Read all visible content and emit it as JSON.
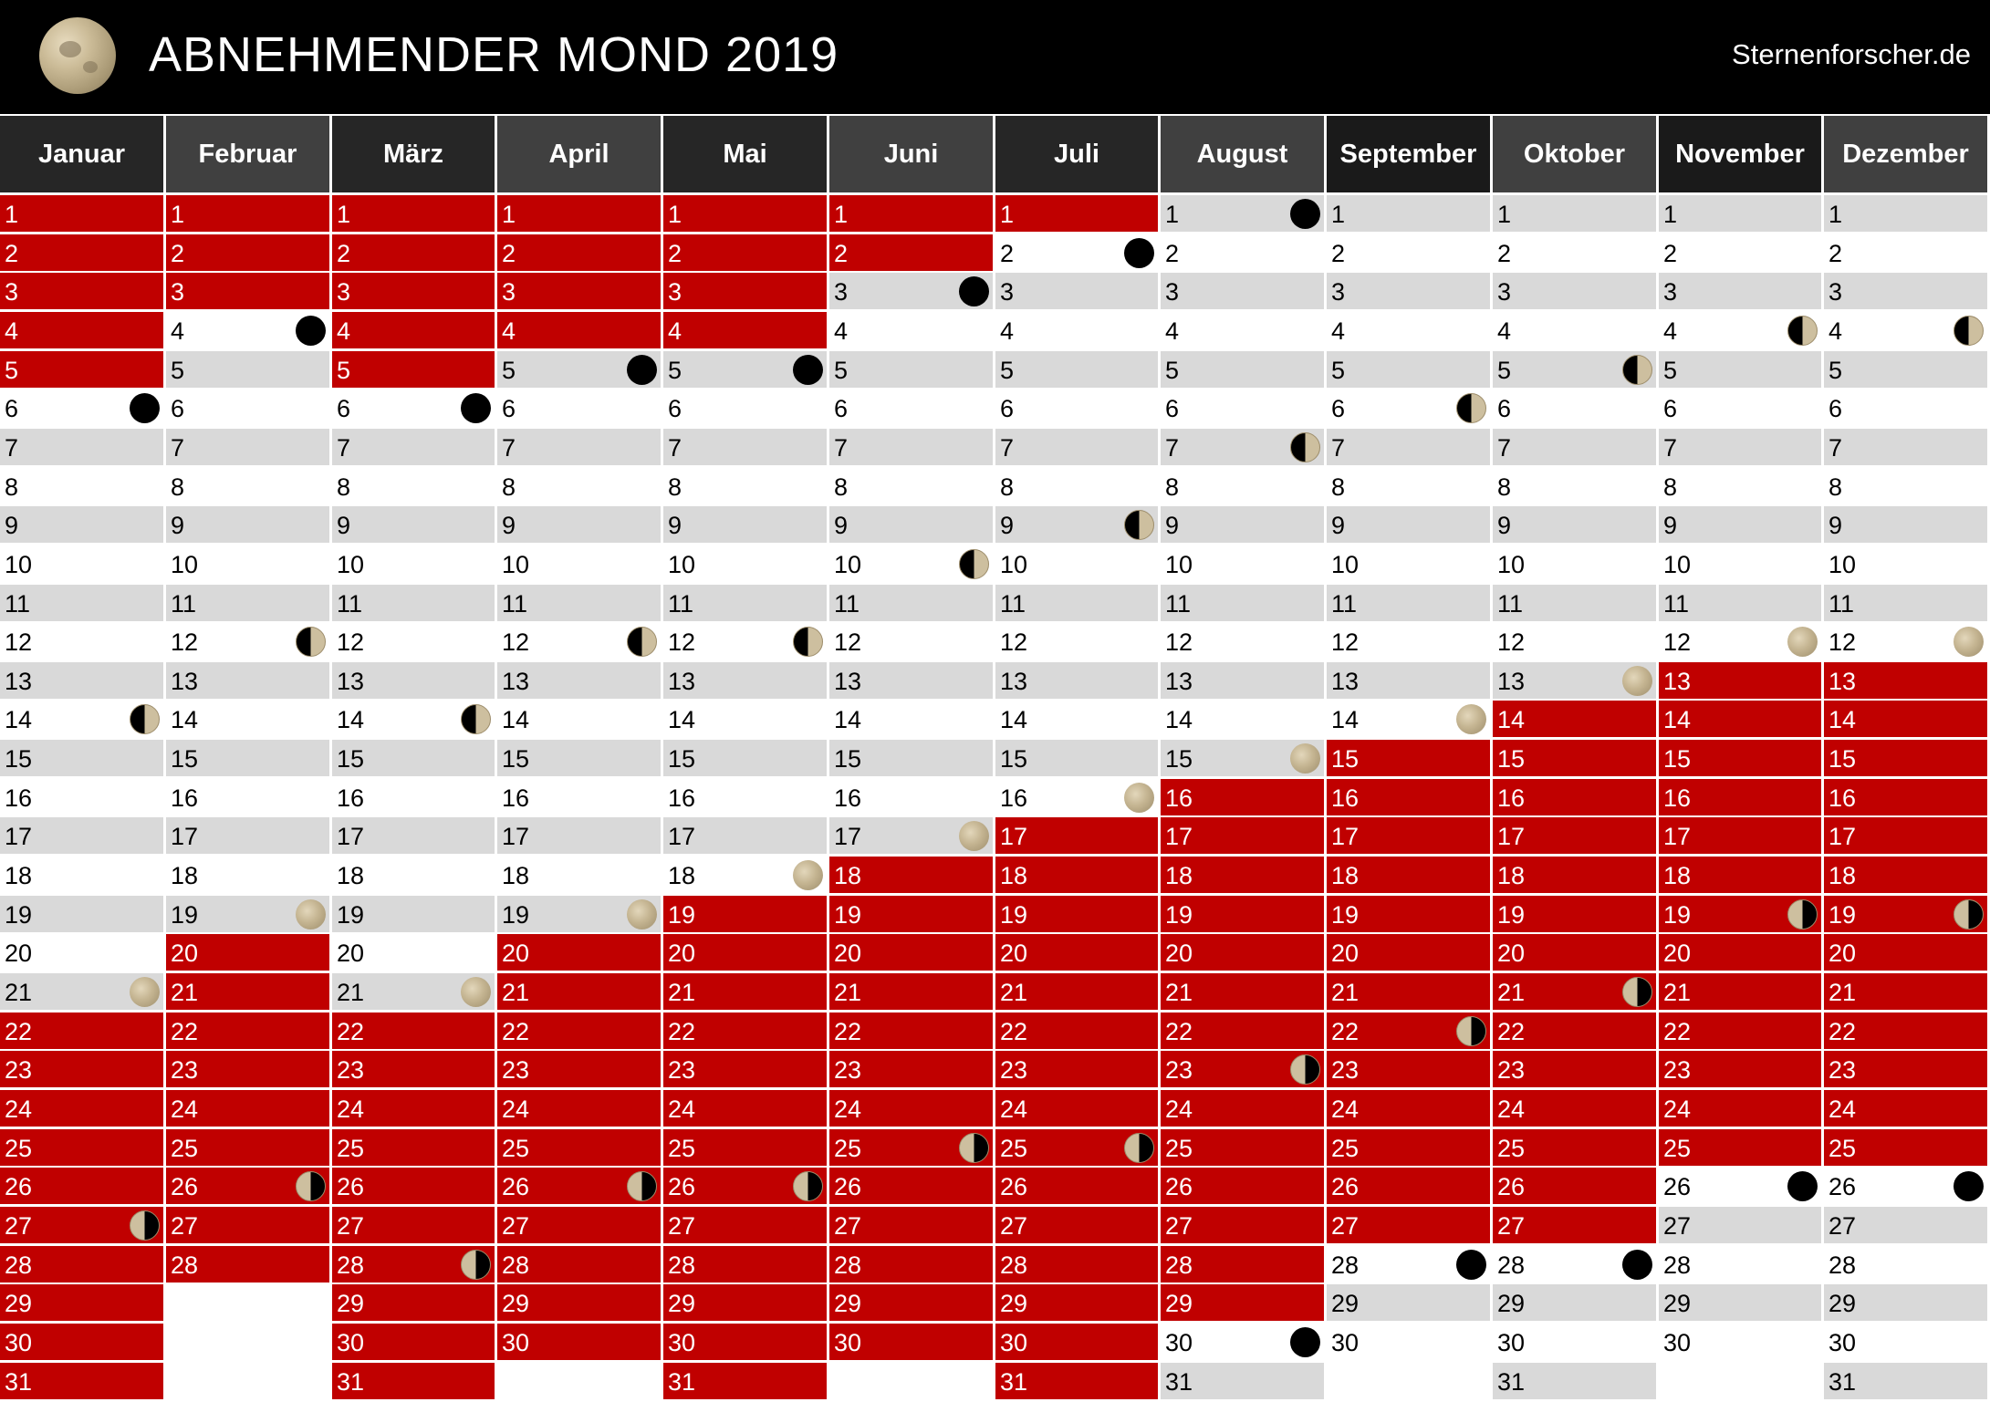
{
  "header": {
    "title": "ABNEHMENDER MOND 2019",
    "site": "Sternenforscher.de",
    "background_color": "#000000"
  },
  "colors": {
    "waning": "#c00000",
    "white_row": "#ffffff",
    "grey_row": "#d9d9d9",
    "header_dark": "#262626",
    "header_mid": "#404040"
  },
  "legend_phase_icons": [
    "new-moon-icon",
    "first-quarter-icon",
    "full-moon-icon",
    "last-quarter-icon"
  ],
  "months": [
    {
      "name": "Januar",
      "days": 31,
      "waning_days": [
        1,
        2,
        3,
        4,
        5,
        22,
        23,
        24,
        25,
        26,
        27,
        28,
        29,
        30,
        31
      ],
      "phases": {
        "6": "new",
        "14": "first",
        "21": "full",
        "27": "last"
      }
    },
    {
      "name": "Februar",
      "days": 28,
      "waning_days": [
        1,
        2,
        3,
        20,
        21,
        22,
        23,
        24,
        25,
        26,
        27,
        28
      ],
      "phases": {
        "4": "new",
        "12": "first",
        "19": "full",
        "26": "last"
      }
    },
    {
      "name": "März",
      "days": 31,
      "waning_days": [
        1,
        2,
        3,
        4,
        5,
        22,
        23,
        24,
        25,
        26,
        27,
        28,
        29,
        30,
        31
      ],
      "phases": {
        "6": "new",
        "14": "first",
        "21": "full",
        "28": "last"
      }
    },
    {
      "name": "April",
      "days": 30,
      "waning_days": [
        1,
        2,
        3,
        4,
        20,
        21,
        22,
        23,
        24,
        25,
        26,
        27,
        28,
        29,
        30
      ],
      "phases": {
        "5": "new",
        "12": "first",
        "19": "full",
        "26": "last"
      }
    },
    {
      "name": "Mai",
      "days": 31,
      "waning_days": [
        1,
        2,
        3,
        4,
        19,
        20,
        21,
        22,
        23,
        24,
        25,
        26,
        27,
        28,
        29,
        30,
        31
      ],
      "phases": {
        "5": "new",
        "12": "first",
        "18": "full",
        "26": "last"
      }
    },
    {
      "name": "Juni",
      "days": 30,
      "waning_days": [
        1,
        2,
        18,
        19,
        20,
        21,
        22,
        23,
        24,
        25,
        26,
        27,
        28,
        29,
        30
      ],
      "phases": {
        "3": "new",
        "10": "first",
        "17": "full",
        "25": "last"
      }
    },
    {
      "name": "Juli",
      "days": 31,
      "waning_days": [
        1,
        17,
        18,
        19,
        20,
        21,
        22,
        23,
        24,
        25,
        26,
        27,
        28,
        29,
        30,
        31
      ],
      "phases": {
        "2": "new",
        "9": "first",
        "16": "full",
        "25": "last"
      }
    },
    {
      "name": "August",
      "days": 31,
      "waning_days": [
        16,
        17,
        18,
        19,
        20,
        21,
        22,
        23,
        24,
        25,
        26,
        27,
        28,
        29
      ],
      "phases": {
        "1": "new",
        "7": "first",
        "15": "full",
        "23": "last",
        "30": "new"
      }
    },
    {
      "name": "September",
      "days": 30,
      "waning_days": [
        15,
        16,
        17,
        18,
        19,
        20,
        21,
        22,
        23,
        24,
        25,
        26,
        27
      ],
      "phases": {
        "6": "first",
        "14": "full",
        "22": "last",
        "28": "new"
      }
    },
    {
      "name": "Oktober",
      "days": 31,
      "waning_days": [
        14,
        15,
        16,
        17,
        18,
        19,
        20,
        21,
        22,
        23,
        24,
        25,
        26,
        27
      ],
      "phases": {
        "5": "first",
        "13": "full",
        "21": "last",
        "28": "new"
      }
    },
    {
      "name": "November",
      "days": 30,
      "waning_days": [
        13,
        14,
        15,
        16,
        17,
        18,
        19,
        20,
        21,
        22,
        23,
        24,
        25
      ],
      "phases": {
        "4": "first",
        "12": "full",
        "19": "last",
        "26": "new"
      }
    },
    {
      "name": "Dezember",
      "days": 31,
      "waning_days": [
        13,
        14,
        15,
        16,
        17,
        18,
        19,
        20,
        21,
        22,
        23,
        24,
        25
      ],
      "phases": {
        "4": "first",
        "12": "full",
        "19": "last",
        "26": "new"
      }
    }
  ]
}
